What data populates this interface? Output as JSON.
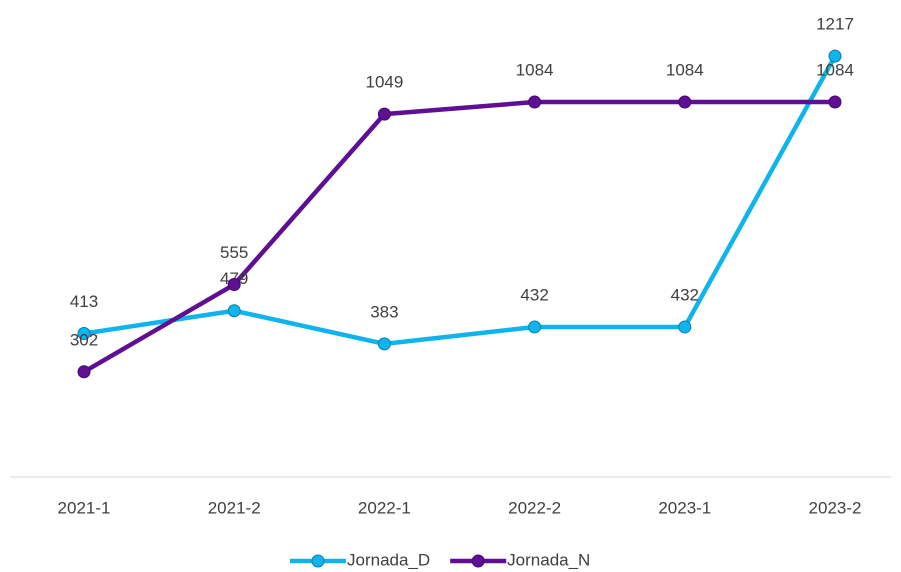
{
  "chart_data": {
    "type": "line",
    "categories": [
      "2021-1",
      "2021-2",
      "2022-1",
      "2022-2",
      "2023-1",
      "2023-2"
    ],
    "series": [
      {
        "name": "Jornada_D",
        "color": "#0fb4ec",
        "values": [
          413,
          479,
          383,
          432,
          432,
          1217
        ]
      },
      {
        "name": "Jornada_N",
        "color": "#5e0f94",
        "values": [
          302,
          555,
          1049,
          1084,
          1084,
          1084
        ]
      }
    ],
    "ylim": [
      0,
      1400
    ],
    "legend": "bottom"
  }
}
